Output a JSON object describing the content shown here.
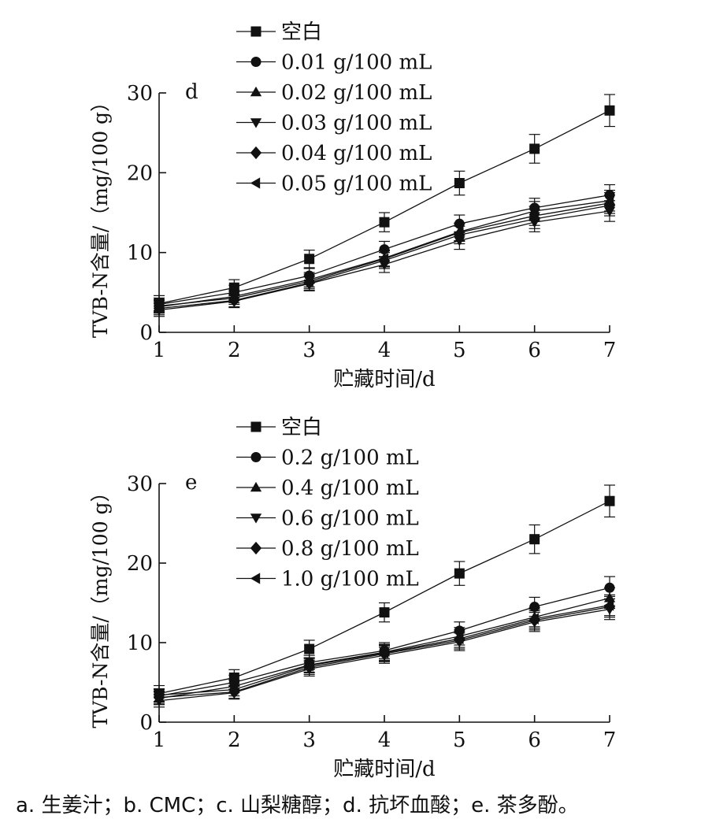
{
  "chart_data": [
    {
      "type": "line",
      "panel_label": "d",
      "xlabel": "贮藏时间/d",
      "ylabel": "TVB-N含量/（mg/100 g）",
      "x": [
        1,
        2,
        3,
        4,
        5,
        6,
        7
      ],
      "xlim": [
        1,
        7
      ],
      "ylim": [
        0,
        30
      ],
      "yticks": [
        0,
        10,
        20,
        30
      ],
      "grid": false,
      "legend_position": "top-left",
      "series": [
        {
          "name": "空白",
          "marker": "square",
          "values": [
            3.6,
            5.6,
            9.2,
            13.8,
            18.7,
            23.0,
            27.8
          ],
          "errors": [
            1.0,
            1.0,
            1.1,
            1.2,
            1.5,
            1.8,
            2.0
          ]
        },
        {
          "name": "0.01 g/100 mL",
          "marker": "circle",
          "values": [
            3.5,
            5.0,
            7.1,
            10.4,
            13.6,
            15.6,
            17.2
          ],
          "errors": [
            0.8,
            0.9,
            0.9,
            1.0,
            1.1,
            1.2,
            1.3
          ]
        },
        {
          "name": "0.02 g/100 mL",
          "marker": "triangle-up",
          "values": [
            3.2,
            4.5,
            6.6,
            9.3,
            12.6,
            15.2,
            16.5
          ],
          "errors": [
            0.8,
            0.8,
            0.9,
            1.0,
            1.1,
            1.2,
            1.3
          ]
        },
        {
          "name": "0.03 g/100 mL",
          "marker": "triangle-down",
          "values": [
            2.8,
            3.9,
            6.1,
            8.5,
            11.5,
            13.8,
            15.2
          ],
          "errors": [
            0.8,
            0.8,
            0.9,
            1.0,
            1.1,
            1.2,
            1.3
          ]
        },
        {
          "name": "0.04 g/100 mL",
          "marker": "diamond",
          "values": [
            3.0,
            4.0,
            6.2,
            9.0,
            12.2,
            14.2,
            15.9
          ],
          "errors": [
            0.8,
            0.8,
            0.9,
            1.0,
            1.1,
            1.2,
            1.3
          ]
        },
        {
          "name": "0.05 g/100 mL",
          "marker": "triangle-left",
          "values": [
            3.3,
            4.3,
            6.4,
            9.2,
            12.5,
            14.6,
            16.2
          ],
          "errors": [
            0.8,
            0.8,
            0.9,
            1.0,
            1.1,
            1.2,
            1.3
          ]
        }
      ]
    },
    {
      "type": "line",
      "panel_label": "e",
      "xlabel": "贮藏时间/d",
      "ylabel": "TVB-N含量/（mg/100 g）",
      "x": [
        1,
        2,
        3,
        4,
        5,
        6,
        7
      ],
      "xlim": [
        1,
        7
      ],
      "ylim": [
        0,
        30
      ],
      "yticks": [
        0,
        10,
        20,
        30
      ],
      "grid": false,
      "legend_position": "top-left",
      "series": [
        {
          "name": "空白",
          "marker": "square",
          "values": [
            3.6,
            5.6,
            9.2,
            13.8,
            18.7,
            23.0,
            27.8
          ],
          "errors": [
            1.0,
            1.0,
            1.1,
            1.2,
            1.5,
            1.8,
            2.0
          ]
        },
        {
          "name": "0.2 g/100 mL",
          "marker": "circle",
          "values": [
            3.3,
            5.0,
            7.5,
            9.0,
            11.5,
            14.5,
            16.9
          ],
          "errors": [
            0.8,
            0.9,
            0.9,
            1.0,
            1.1,
            1.2,
            1.4
          ]
        },
        {
          "name": "0.4 g/100 mL",
          "marker": "triangle-up",
          "values": [
            3.0,
            4.5,
            7.2,
            8.8,
            10.8,
            13.2,
            15.6
          ],
          "errors": [
            0.8,
            0.8,
            0.9,
            1.0,
            1.1,
            1.2,
            1.3
          ]
        },
        {
          "name": "0.6 g/100 mL",
          "marker": "triangle-down",
          "values": [
            2.7,
            3.7,
            6.7,
            8.4,
            10.1,
            12.6,
            14.2
          ],
          "errors": [
            0.8,
            0.8,
            0.9,
            1.0,
            1.1,
            1.2,
            1.3
          ]
        },
        {
          "name": "0.8 g/100 mL",
          "marker": "diamond",
          "values": [
            3.1,
            3.8,
            6.9,
            8.6,
            10.3,
            12.8,
            14.5
          ],
          "errors": [
            0.8,
            0.8,
            0.9,
            1.0,
            1.1,
            1.2,
            1.3
          ]
        },
        {
          "name": "1.0 g/100 mL",
          "marker": "triangle-left",
          "values": [
            3.4,
            4.1,
            7.1,
            8.7,
            10.5,
            13.0,
            14.7
          ],
          "errors": [
            0.8,
            0.8,
            0.9,
            1.0,
            1.1,
            1.2,
            1.3
          ]
        }
      ]
    }
  ],
  "caption": "a. 生姜汁；b. CMC；c. 山梨糖醇；d. 抗坏血酸；e. 茶多酚。"
}
